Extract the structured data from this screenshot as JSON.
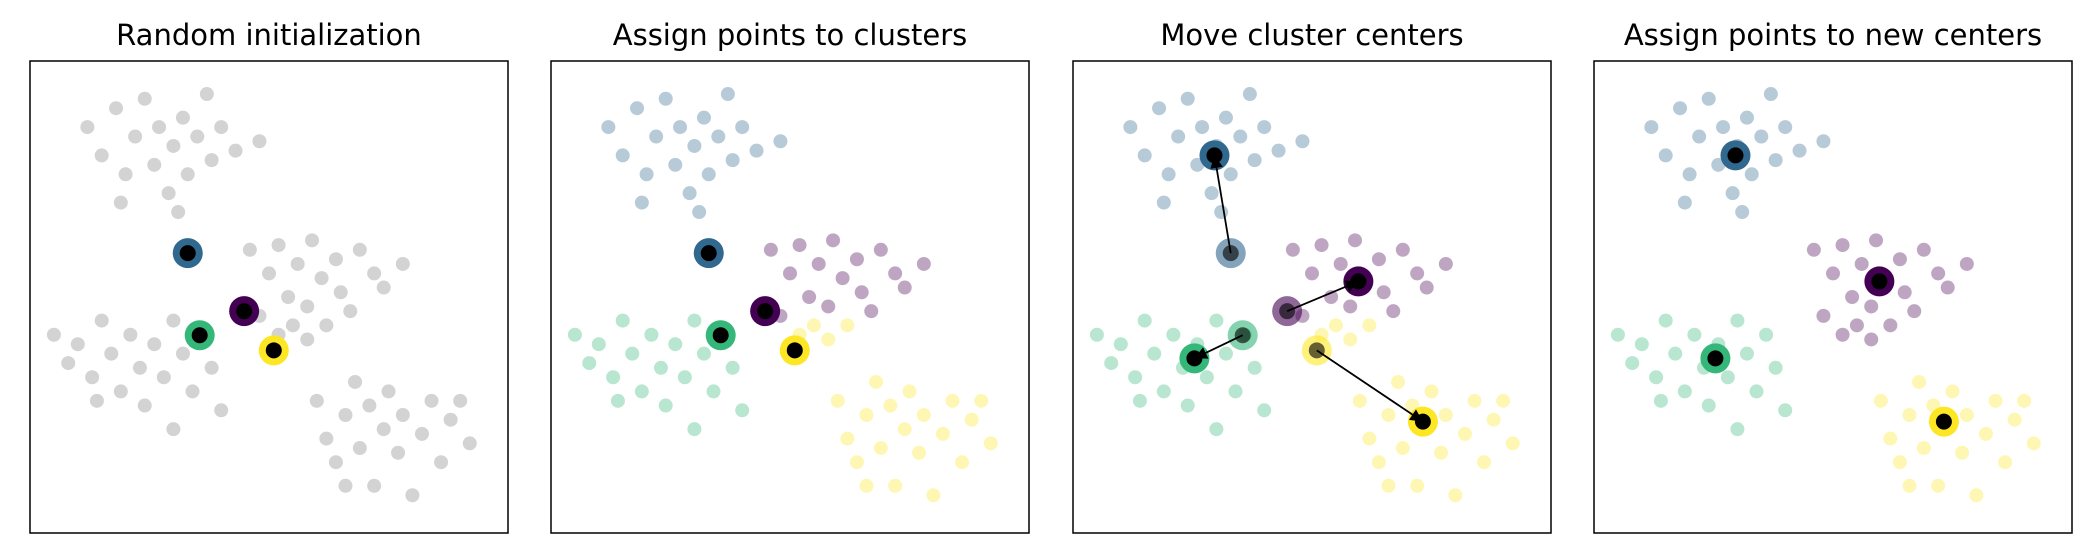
{
  "chart_data": [
    {
      "type": "scatter",
      "title": "Random initialization",
      "xlim": [
        0,
        100
      ],
      "ylim": [
        0,
        100
      ],
      "series": [
        {
          "color": "#808080",
          "x": [
            46,
            50,
            52,
            54,
            56,
            58,
            59,
            61,
            62,
            64,
            65,
            67,
            69,
            72,
            74,
            78,
            48,
            52,
            55,
            58,
            12,
            15,
            18,
            20,
            22,
            24,
            26,
            27,
            29,
            30,
            32,
            33,
            35,
            37,
            38,
            40,
            43,
            48,
            19,
            31,
            5,
            8,
            10,
            13,
            15,
            17,
            19,
            21,
            23,
            24,
            26,
            28,
            30,
            32,
            34,
            36,
            38,
            40,
            14,
            30,
            60,
            62,
            64,
            66,
            68,
            69,
            71,
            72,
            74,
            75,
            77,
            78,
            80,
            82,
            84,
            86,
            88,
            92,
            66,
            90
          ],
          "y": [
            60,
            55,
            61,
            50,
            57,
            48,
            62,
            54,
            44,
            58,
            51,
            47,
            60,
            55,
            52,
            57,
            46,
            42,
            44,
            41,
            86,
            80,
            90,
            76,
            84,
            92,
            78,
            86,
            72,
            82,
            88,
            76,
            84,
            93,
            79,
            86,
            81,
            83,
            70,
            68,
            42,
            36,
            40,
            33,
            45,
            38,
            30,
            42,
            35,
            27,
            40,
            33,
            45,
            38,
            30,
            42,
            35,
            26,
            28,
            22,
            28,
            20,
            15,
            25,
            32,
            18,
            27,
            10,
            22,
            30,
            17,
            25,
            8,
            21,
            28,
            15,
            24,
            19,
            10,
            28
          ]
        }
      ],
      "centers": {
        "colors": [
          "#440154",
          "#31688e",
          "#35b779",
          "#fde725"
        ],
        "x": [
          44.8,
          33,
          35.5,
          51
        ],
        "y": [
          47,
          59.3,
          41.9,
          38.7
        ]
      }
    },
    {
      "type": "scatter",
      "title": "Assign points to clusters",
      "xlim": [
        0,
        100
      ],
      "ylim": [
        0,
        100
      ],
      "series": [
        {
          "color": "#440154",
          "x": [
            46,
            50,
            52,
            54,
            56,
            58,
            59,
            61,
            64,
            65,
            67,
            69,
            72,
            74,
            78,
            48
          ],
          "y": [
            60,
            55,
            61,
            50,
            57,
            48,
            62,
            54,
            58,
            51,
            47,
            60,
            55,
            52,
            57,
            46
          ]
        },
        {
          "color": "#31688e",
          "x": [
            12,
            15,
            18,
            20,
            22,
            24,
            26,
            27,
            29,
            30,
            32,
            33,
            35,
            37,
            38,
            40,
            43,
            48,
            19,
            31
          ],
          "y": [
            86,
            80,
            90,
            76,
            84,
            92,
            78,
            86,
            72,
            82,
            88,
            76,
            84,
            93,
            79,
            86,
            81,
            83,
            70,
            68
          ]
        },
        {
          "color": "#35b779",
          "x": [
            5,
            8,
            10,
            13,
            15,
            17,
            19,
            21,
            23,
            24,
            26,
            28,
            30,
            32,
            34,
            36,
            38,
            40,
            14,
            30
          ],
          "y": [
            42,
            36,
            40,
            33,
            45,
            38,
            30,
            42,
            35,
            27,
            40,
            33,
            45,
            38,
            30,
            42,
            35,
            26,
            28,
            22
          ]
        },
        {
          "color": "#fde725",
          "x": [
            60,
            62,
            64,
            66,
            68,
            69,
            71,
            72,
            74,
            75,
            77,
            78,
            80,
            82,
            84,
            86,
            88,
            92,
            66,
            90,
            62,
            52,
            55,
            58
          ],
          "y": [
            28,
            20,
            15,
            25,
            32,
            18,
            27,
            10,
            22,
            30,
            17,
            25,
            8,
            21,
            28,
            15,
            24,
            19,
            10,
            28,
            44,
            42,
            44,
            41
          ]
        }
      ],
      "centers": {
        "colors": [
          "#440154",
          "#31688e",
          "#35b779",
          "#fde725"
        ],
        "x": [
          44.8,
          33,
          35.5,
          51
        ],
        "y": [
          47,
          59.3,
          41.9,
          38.7
        ]
      }
    },
    {
      "type": "scatter",
      "title": "Move cluster centers",
      "xlim": [
        0,
        100
      ],
      "ylim": [
        0,
        100
      ],
      "series": [
        {
          "color": "#440154",
          "x": [
            46,
            50,
            52,
            54,
            56,
            58,
            59,
            61,
            64,
            65,
            67,
            69,
            72,
            74,
            78,
            48
          ],
          "y": [
            60,
            55,
            61,
            50,
            57,
            48,
            62,
            54,
            58,
            51,
            47,
            60,
            55,
            52,
            57,
            46
          ]
        },
        {
          "color": "#31688e",
          "x": [
            12,
            15,
            18,
            20,
            22,
            24,
            26,
            27,
            29,
            30,
            32,
            33,
            35,
            37,
            38,
            40,
            43,
            48,
            19,
            31
          ],
          "y": [
            86,
            80,
            90,
            76,
            84,
            92,
            78,
            86,
            72,
            82,
            88,
            76,
            84,
            93,
            79,
            86,
            81,
            83,
            70,
            68
          ]
        },
        {
          "color": "#35b779",
          "x": [
            5,
            8,
            10,
            13,
            15,
            17,
            19,
            21,
            23,
            24,
            26,
            28,
            30,
            32,
            34,
            36,
            38,
            40,
            14,
            30
          ],
          "y": [
            42,
            36,
            40,
            33,
            45,
            38,
            30,
            42,
            35,
            27,
            40,
            33,
            45,
            38,
            30,
            42,
            35,
            26,
            28,
            22
          ]
        },
        {
          "color": "#fde725",
          "x": [
            60,
            62,
            64,
            66,
            68,
            69,
            71,
            72,
            74,
            75,
            77,
            78,
            80,
            82,
            84,
            86,
            88,
            92,
            66,
            90,
            62,
            52,
            55,
            58
          ],
          "y": [
            28,
            20,
            15,
            25,
            32,
            18,
            27,
            10,
            22,
            30,
            17,
            25,
            8,
            21,
            28,
            15,
            24,
            19,
            10,
            28,
            44,
            42,
            44,
            41
          ]
        }
      ],
      "previous_centers": {
        "colors": [
          "#440154",
          "#31688e",
          "#35b779",
          "#fde725"
        ],
        "x": [
          44.8,
          33,
          35.5,
          51
        ],
        "y": [
          47,
          59.3,
          41.9,
          38.7
        ]
      },
      "centers": {
        "colors": [
          "#440154",
          "#31688e",
          "#35b779",
          "#fde725"
        ],
        "x": [
          59.7,
          29.6,
          25.4,
          73.2
        ],
        "y": [
          53.3,
          80,
          37,
          23.6
        ]
      }
    },
    {
      "type": "scatter",
      "title": "Assign points to new centers",
      "xlim": [
        0,
        100
      ],
      "ylim": [
        0,
        100
      ],
      "series": [
        {
          "color": "#440154",
          "x": [
            46,
            50,
            52,
            54,
            56,
            58,
            59,
            61,
            62,
            64,
            65,
            67,
            69,
            72,
            74,
            78,
            48,
            52,
            55,
            58
          ],
          "y": [
            60,
            55,
            61,
            50,
            57,
            48,
            62,
            54,
            44,
            58,
            51,
            47,
            60,
            55,
            52,
            57,
            46,
            42,
            44,
            41
          ]
        },
        {
          "color": "#31688e",
          "x": [
            12,
            15,
            18,
            20,
            22,
            24,
            26,
            27,
            29,
            30,
            32,
            33,
            35,
            37,
            38,
            40,
            43,
            48,
            19,
            31
          ],
          "y": [
            86,
            80,
            90,
            76,
            84,
            92,
            78,
            86,
            72,
            82,
            88,
            76,
            84,
            93,
            79,
            86,
            81,
            83,
            70,
            68
          ]
        },
        {
          "color": "#35b779",
          "x": [
            5,
            8,
            10,
            13,
            15,
            17,
            19,
            21,
            23,
            24,
            26,
            28,
            30,
            32,
            34,
            36,
            38,
            40,
            14,
            30
          ],
          "y": [
            42,
            36,
            40,
            33,
            45,
            38,
            30,
            42,
            35,
            27,
            40,
            33,
            45,
            38,
            30,
            42,
            35,
            26,
            28,
            22
          ]
        },
        {
          "color": "#fde725",
          "x": [
            60,
            62,
            64,
            66,
            68,
            69,
            71,
            72,
            74,
            75,
            77,
            78,
            80,
            82,
            84,
            86,
            88,
            92,
            66,
            90
          ],
          "y": [
            28,
            20,
            15,
            25,
            32,
            18,
            27,
            10,
            22,
            30,
            17,
            25,
            8,
            21,
            28,
            15,
            24,
            19,
            10,
            28
          ]
        }
      ],
      "centers": {
        "colors": [
          "#440154",
          "#31688e",
          "#35b779",
          "#fde725"
        ],
        "x": [
          59.7,
          29.6,
          25.4,
          73.2
        ],
        "y": [
          53.3,
          80,
          37,
          23.6
        ]
      }
    }
  ]
}
